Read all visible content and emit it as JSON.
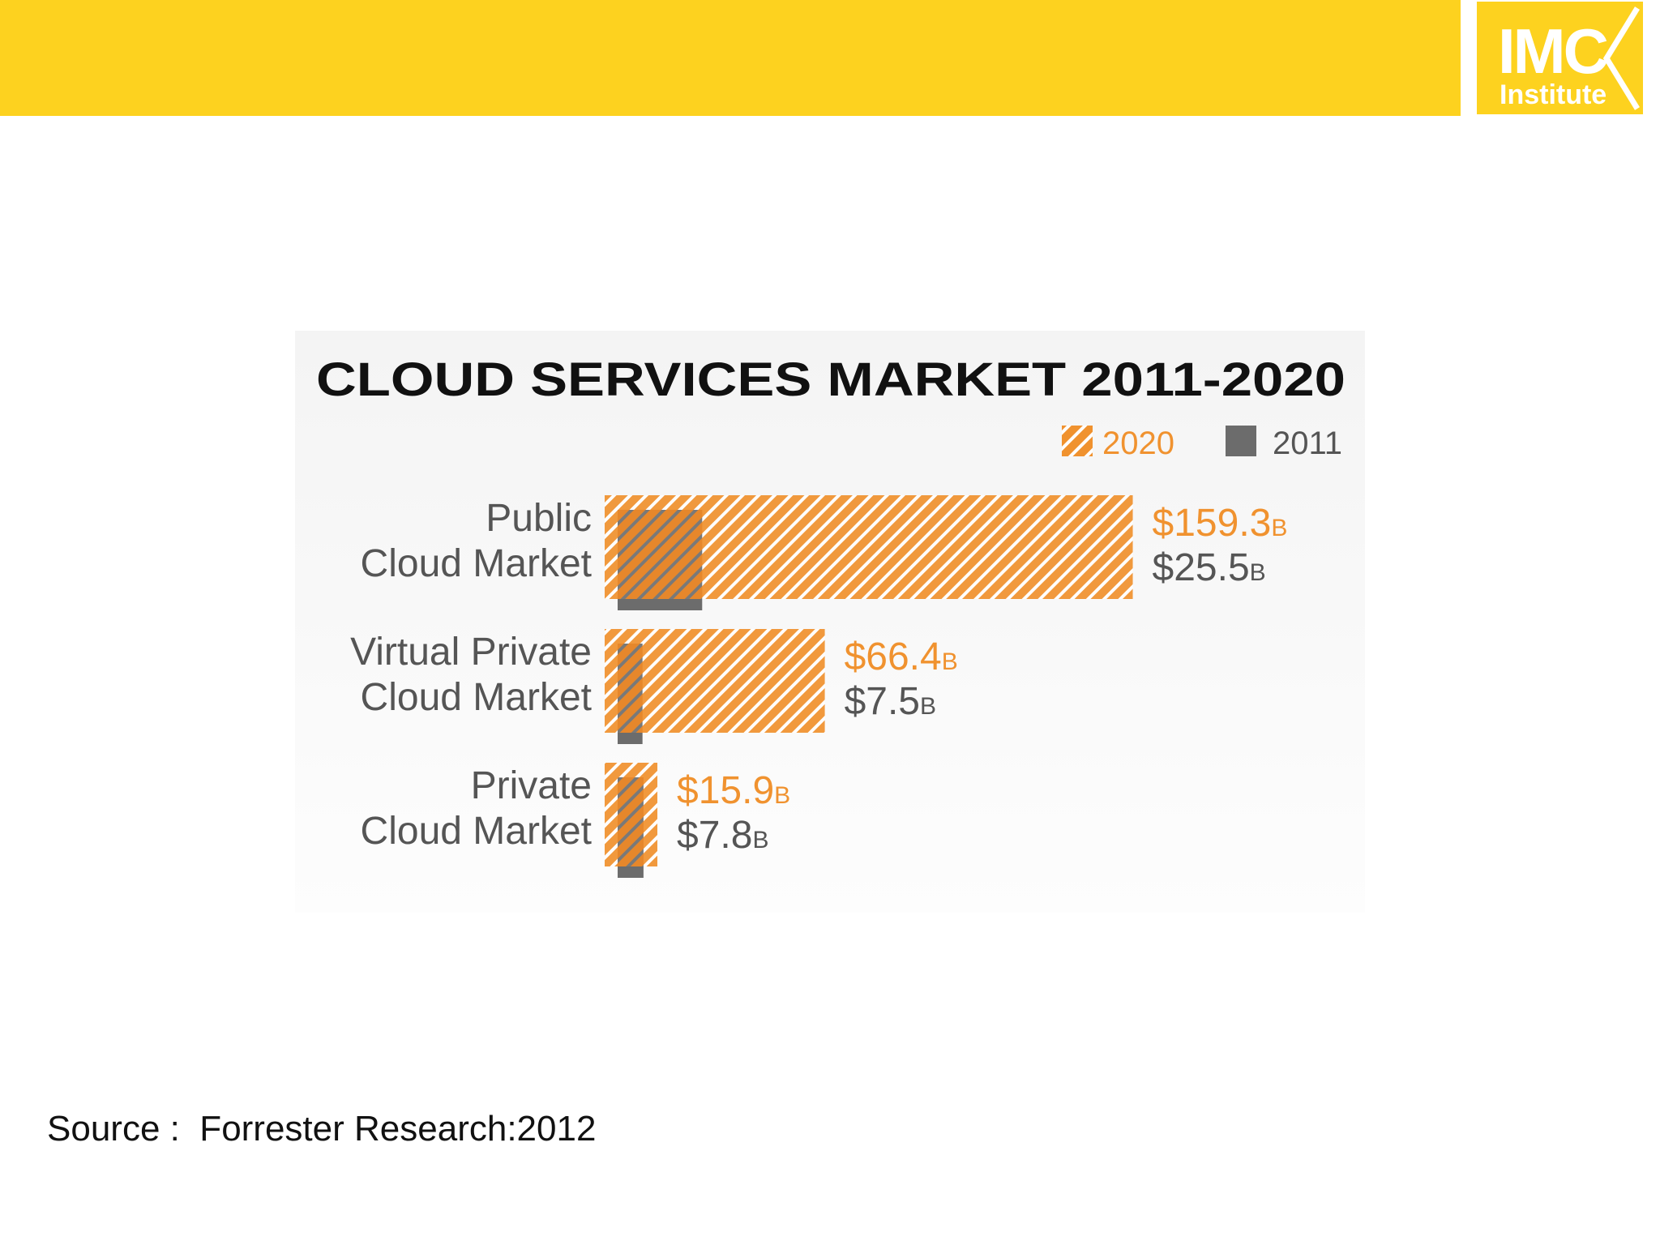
{
  "logo": {
    "brand": "IMC",
    "subtitle": "Institute"
  },
  "source": "Source :  Forrester Research:2012",
  "colors": {
    "orange": "#f0922f",
    "gray": "#6c6c6c",
    "yellow": "#fdd21f"
  },
  "chart_data": {
    "type": "bar",
    "orientation": "horizontal",
    "title": "CLOUD SERVICES MARKET 2011-2020",
    "categories": [
      [
        "Public",
        "Cloud Market"
      ],
      [
        "Virtual Private",
        "Cloud Market"
      ],
      [
        "Private",
        "Cloud Market"
      ]
    ],
    "series": [
      {
        "name": "2020",
        "values": [
          159.3,
          66.4,
          15.9
        ],
        "labels": [
          "$159.3",
          "$66.4",
          "$15.9"
        ],
        "unit": "B",
        "color": "#f0922f",
        "pattern": "hatched"
      },
      {
        "name": "2011",
        "values": [
          25.5,
          7.5,
          7.8
        ],
        "labels": [
          "$25.5",
          "$7.5",
          "$7.8"
        ],
        "unit": "B",
        "color": "#6c6c6c"
      }
    ],
    "legend": [
      {
        "label": "2020",
        "color": "#f0922f"
      },
      {
        "label": "2011",
        "color": "#6c6c6c"
      }
    ],
    "legend_position": "top-right"
  }
}
